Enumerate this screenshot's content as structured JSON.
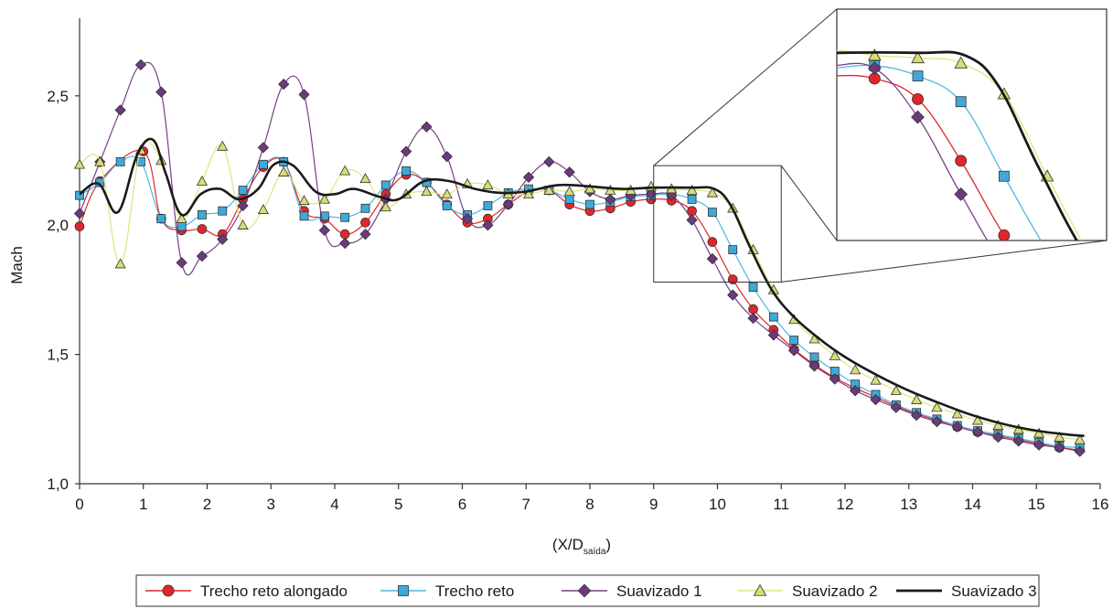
{
  "chart_data": {
    "type": "line",
    "title": "",
    "xlabel": "(X/D",
    "xlabel_sub": "saída",
    "xlabel_close": ")",
    "ylabel": "Mach",
    "xlim": [
      0,
      16
    ],
    "ylim": [
      1.0,
      2.8
    ],
    "xticks": [
      0,
      1,
      2,
      3,
      4,
      5,
      6,
      7,
      8,
      9,
      10,
      11,
      12,
      13,
      14,
      15,
      16
    ],
    "xtick_labels": [
      "0",
      "1",
      "2",
      "3",
      "4",
      "5",
      "6",
      "7",
      "8",
      "9",
      "10",
      "11",
      "12",
      "13",
      "14",
      "15",
      "16"
    ],
    "yticks": [
      1.0,
      1.5,
      2.0,
      2.5
    ],
    "ytick_labels": [
      "1,0",
      "1,5",
      "2,0",
      "2,5"
    ],
    "grid": false,
    "legend_position": "bottom",
    "zoom_inset": {
      "x": [
        9.0,
        11.0
      ],
      "y": [
        1.78,
        2.23
      ]
    },
    "series": [
      {
        "name": "Trecho reto alongado",
        "color": "#e0262a",
        "marker": "circle",
        "marker_color": "#e0262a",
        "points": [
          [
            0,
            1.995
          ],
          [
            0.32,
            2.17
          ],
          [
            1.0,
            2.285
          ],
          [
            1.28,
            2.025
          ],
          [
            1.6,
            1.98
          ],
          [
            1.92,
            1.985
          ],
          [
            2.24,
            1.965
          ],
          [
            2.56,
            2.1
          ],
          [
            2.88,
            2.225
          ],
          [
            3.2,
            2.245
          ],
          [
            3.52,
            2.055
          ],
          [
            3.84,
            2.025
          ],
          [
            4.16,
            1.965
          ],
          [
            4.48,
            2.01
          ],
          [
            4.8,
            2.12
          ],
          [
            5.12,
            2.195
          ],
          [
            5.44,
            2.165
          ],
          [
            5.76,
            2.08
          ],
          [
            6.08,
            2.01
          ],
          [
            6.4,
            2.025
          ],
          [
            6.72,
            2.08
          ],
          [
            7.04,
            2.13
          ],
          [
            7.36,
            2.135
          ],
          [
            7.68,
            2.08
          ],
          [
            8.0,
            2.055
          ],
          [
            8.32,
            2.065
          ],
          [
            8.64,
            2.09
          ],
          [
            8.96,
            2.1
          ],
          [
            9.28,
            2.095
          ],
          [
            9.6,
            2.055
          ],
          [
            9.92,
            1.935
          ],
          [
            10.24,
            1.79
          ],
          [
            10.56,
            1.675
          ],
          [
            10.88,
            1.595
          ],
          [
            11.2,
            1.52
          ],
          [
            11.52,
            1.46
          ],
          [
            11.84,
            1.41
          ],
          [
            12.16,
            1.37
          ],
          [
            12.48,
            1.335
          ],
          [
            12.8,
            1.3
          ],
          [
            13.12,
            1.27
          ],
          [
            13.44,
            1.245
          ],
          [
            13.76,
            1.22
          ],
          [
            14.08,
            1.2
          ],
          [
            14.4,
            1.185
          ],
          [
            14.72,
            1.17
          ],
          [
            15.04,
            1.155
          ],
          [
            15.36,
            1.14
          ],
          [
            15.68,
            1.13
          ]
        ]
      },
      {
        "name": "Trecho reto",
        "color": "#4db8e0",
        "marker": "square",
        "marker_color": "#3fa9d9",
        "points": [
          [
            0,
            2.115
          ],
          [
            0.32,
            2.165
          ],
          [
            0.64,
            2.245
          ],
          [
            0.96,
            2.245
          ],
          [
            1.28,
            2.025
          ],
          [
            1.6,
            1.995
          ],
          [
            1.92,
            2.04
          ],
          [
            2.24,
            2.055
          ],
          [
            2.56,
            2.135
          ],
          [
            2.88,
            2.235
          ],
          [
            3.2,
            2.245
          ],
          [
            3.52,
            2.035
          ],
          [
            3.84,
            2.035
          ],
          [
            4.16,
            2.03
          ],
          [
            4.48,
            2.065
          ],
          [
            4.8,
            2.155
          ],
          [
            5.12,
            2.21
          ],
          [
            5.44,
            2.165
          ],
          [
            5.76,
            2.075
          ],
          [
            6.08,
            2.04
          ],
          [
            6.4,
            2.075
          ],
          [
            6.72,
            2.125
          ],
          [
            7.04,
            2.14
          ],
          [
            7.36,
            2.135
          ],
          [
            7.68,
            2.1
          ],
          [
            8.0,
            2.08
          ],
          [
            8.32,
            2.09
          ],
          [
            8.64,
            2.11
          ],
          [
            8.96,
            2.115
          ],
          [
            9.28,
            2.12
          ],
          [
            9.6,
            2.1
          ],
          [
            9.92,
            2.05
          ],
          [
            10.24,
            1.905
          ],
          [
            10.56,
            1.76
          ],
          [
            10.88,
            1.645
          ],
          [
            11.2,
            1.555
          ],
          [
            11.52,
            1.49
          ],
          [
            11.84,
            1.435
          ],
          [
            12.16,
            1.385
          ],
          [
            12.48,
            1.345
          ],
          [
            12.8,
            1.305
          ],
          [
            13.12,
            1.275
          ],
          [
            13.44,
            1.25
          ],
          [
            13.76,
            1.225
          ],
          [
            14.08,
            1.205
          ],
          [
            14.4,
            1.19
          ],
          [
            14.72,
            1.175
          ],
          [
            15.04,
            1.16
          ],
          [
            15.36,
            1.145
          ],
          [
            15.68,
            1.14
          ]
        ]
      },
      {
        "name": "Suavizado 1",
        "color": "#7a3f86",
        "marker": "diamond",
        "marker_color": "#6b3a7d",
        "points": [
          [
            0,
            2.045
          ],
          [
            0.32,
            2.245
          ],
          [
            0.64,
            2.445
          ],
          [
            0.96,
            2.62
          ],
          [
            1.28,
            2.515
          ],
          [
            1.6,
            1.855
          ],
          [
            1.92,
            1.88
          ],
          [
            2.24,
            1.945
          ],
          [
            2.56,
            2.075
          ],
          [
            2.88,
            2.3
          ],
          [
            3.2,
            2.545
          ],
          [
            3.52,
            2.505
          ],
          [
            3.84,
            1.98
          ],
          [
            4.16,
            1.93
          ],
          [
            4.48,
            1.965
          ],
          [
            4.8,
            2.1
          ],
          [
            5.12,
            2.285
          ],
          [
            5.44,
            2.38
          ],
          [
            5.76,
            2.265
          ],
          [
            6.08,
            2.025
          ],
          [
            6.4,
            2.0
          ],
          [
            6.72,
            2.08
          ],
          [
            7.04,
            2.185
          ],
          [
            7.36,
            2.245
          ],
          [
            7.68,
            2.205
          ],
          [
            8.0,
            2.13
          ],
          [
            8.32,
            2.1
          ],
          [
            8.64,
            2.115
          ],
          [
            8.96,
            2.12
          ],
          [
            9.28,
            2.115
          ],
          [
            9.6,
            2.02
          ],
          [
            9.92,
            1.87
          ],
          [
            10.24,
            1.73
          ],
          [
            10.56,
            1.64
          ],
          [
            10.88,
            1.575
          ],
          [
            11.2,
            1.515
          ],
          [
            11.52,
            1.455
          ],
          [
            11.84,
            1.405
          ],
          [
            12.16,
            1.36
          ],
          [
            12.48,
            1.325
          ],
          [
            12.8,
            1.295
          ],
          [
            13.12,
            1.265
          ],
          [
            13.44,
            1.24
          ],
          [
            13.76,
            1.22
          ],
          [
            14.08,
            1.2
          ],
          [
            14.4,
            1.18
          ],
          [
            14.72,
            1.165
          ],
          [
            15.04,
            1.15
          ],
          [
            15.36,
            1.14
          ],
          [
            15.68,
            1.125
          ]
        ]
      },
      {
        "name": "Suavizado 2",
        "color": "#dfe67f",
        "marker": "triangle",
        "marker_color": "#d8dd74",
        "points": [
          [
            0,
            2.235
          ],
          [
            0.32,
            2.245
          ],
          [
            0.64,
            1.85
          ],
          [
            0.96,
            2.29
          ],
          [
            1.28,
            2.25
          ],
          [
            1.6,
            2.025
          ],
          [
            1.92,
            2.17
          ],
          [
            2.24,
            2.305
          ],
          [
            2.56,
            2.0
          ],
          [
            2.88,
            2.06
          ],
          [
            3.2,
            2.205
          ],
          [
            3.52,
            2.095
          ],
          [
            3.84,
            2.1
          ],
          [
            4.16,
            2.21
          ],
          [
            4.48,
            2.18
          ],
          [
            4.8,
            2.07
          ],
          [
            5.12,
            2.12
          ],
          [
            5.44,
            2.13
          ],
          [
            5.76,
            2.12
          ],
          [
            6.08,
            2.16
          ],
          [
            6.4,
            2.155
          ],
          [
            6.72,
            2.12
          ],
          [
            7.04,
            2.12
          ],
          [
            7.36,
            2.135
          ],
          [
            7.68,
            2.13
          ],
          [
            8.0,
            2.14
          ],
          [
            8.32,
            2.135
          ],
          [
            8.64,
            2.135
          ],
          [
            8.96,
            2.15
          ],
          [
            9.28,
            2.14
          ],
          [
            9.6,
            2.135
          ],
          [
            9.92,
            2.125
          ],
          [
            10.24,
            2.065
          ],
          [
            10.56,
            1.905
          ],
          [
            10.88,
            1.75
          ],
          [
            11.2,
            1.635
          ],
          [
            11.52,
            1.56
          ],
          [
            11.84,
            1.495
          ],
          [
            12.16,
            1.44
          ],
          [
            12.48,
            1.4
          ],
          [
            12.8,
            1.36
          ],
          [
            13.12,
            1.325
          ],
          [
            13.44,
            1.295
          ],
          [
            13.76,
            1.27
          ],
          [
            14.08,
            1.245
          ],
          [
            14.4,
            1.225
          ],
          [
            14.72,
            1.21
          ],
          [
            15.04,
            1.195
          ],
          [
            15.36,
            1.18
          ],
          [
            15.68,
            1.17
          ]
        ]
      },
      {
        "name": "Suavizado 3",
        "color": "#1a1a1a",
        "marker": "none",
        "marker_color": "#1a1a1a",
        "points": [
          [
            0,
            2.12
          ],
          [
            0.3,
            2.16
          ],
          [
            0.6,
            2.05
          ],
          [
            0.9,
            2.27
          ],
          [
            1.15,
            2.33
          ],
          [
            1.35,
            2.2
          ],
          [
            1.6,
            2.04
          ],
          [
            1.9,
            2.12
          ],
          [
            2.2,
            2.14
          ],
          [
            2.5,
            2.1
          ],
          [
            2.8,
            2.14
          ],
          [
            3.05,
            2.235
          ],
          [
            3.35,
            2.23
          ],
          [
            3.7,
            2.13
          ],
          [
            4.0,
            2.12
          ],
          [
            4.3,
            2.14
          ],
          [
            4.7,
            2.11
          ],
          [
            5.0,
            2.1
          ],
          [
            5.4,
            2.17
          ],
          [
            5.8,
            2.17
          ],
          [
            6.2,
            2.14
          ],
          [
            6.6,
            2.125
          ],
          [
            7.0,
            2.13
          ],
          [
            7.5,
            2.155
          ],
          [
            8.0,
            2.15
          ],
          [
            8.5,
            2.14
          ],
          [
            9.0,
            2.145
          ],
          [
            9.6,
            2.145
          ],
          [
            9.95,
            2.14
          ],
          [
            10.2,
            2.08
          ],
          [
            10.5,
            1.92
          ],
          [
            10.85,
            1.75
          ],
          [
            11.2,
            1.645
          ],
          [
            11.6,
            1.56
          ],
          [
            12.0,
            1.49
          ],
          [
            12.5,
            1.42
          ],
          [
            13.0,
            1.36
          ],
          [
            13.5,
            1.31
          ],
          [
            14.0,
            1.265
          ],
          [
            14.5,
            1.23
          ],
          [
            15.0,
            1.205
          ],
          [
            15.5,
            1.19
          ],
          [
            15.75,
            1.185
          ]
        ]
      }
    ]
  }
}
